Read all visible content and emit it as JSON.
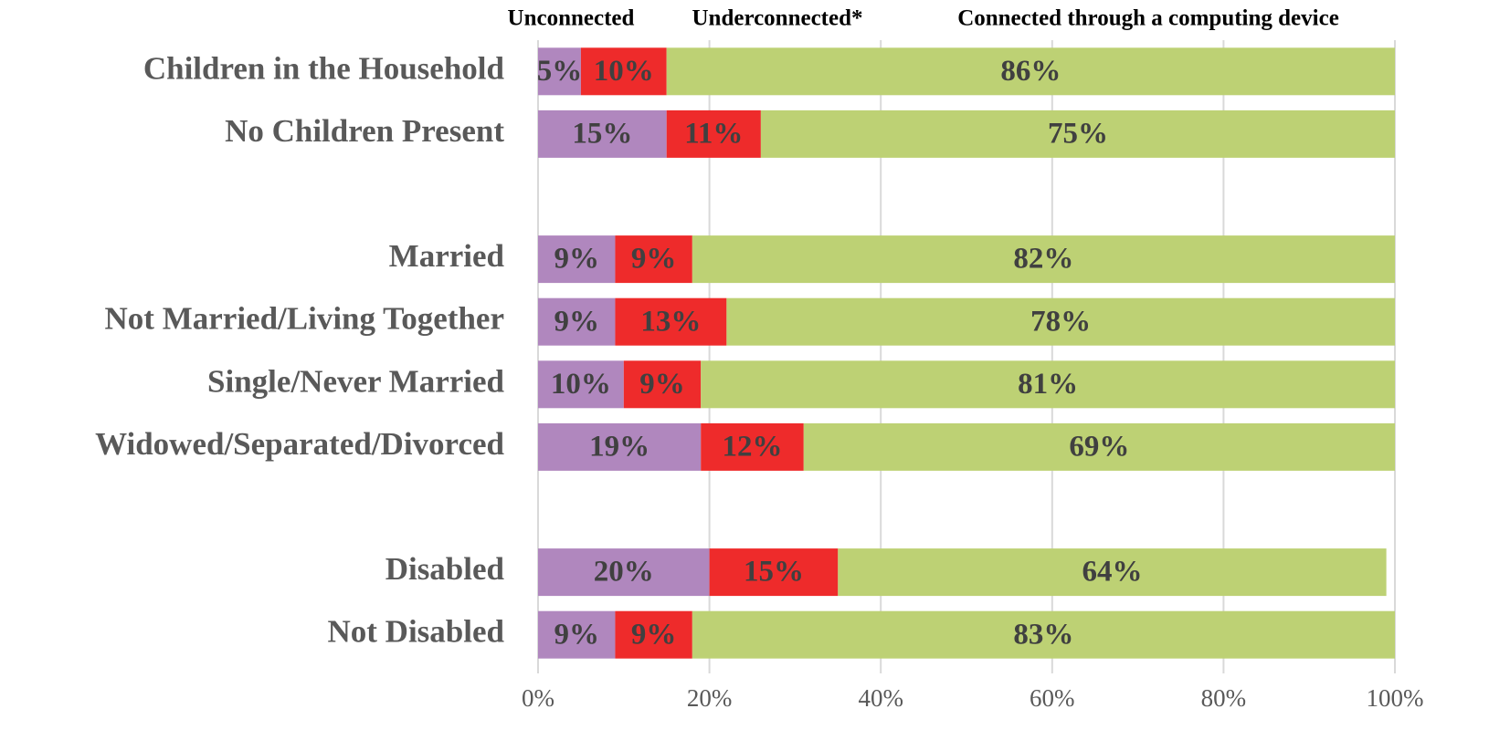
{
  "chart_data": {
    "type": "stacked-barh",
    "categories": [
      "Children in the Household",
      "No Children Present",
      null,
      "Married",
      "Not Married/Living Together",
      "Single/Never Married",
      "Widowed/Separated/Divorced",
      null,
      "Disabled",
      "Not Disabled"
    ],
    "series": [
      {
        "name": "Unconnected",
        "color": "#b087be",
        "values": [
          5,
          15,
          null,
          9,
          9,
          10,
          19,
          null,
          20,
          9
        ],
        "value_labels": [
          "5%",
          "15%",
          null,
          "9%",
          "9%",
          "10%",
          "19%",
          null,
          "20%",
          "9%"
        ]
      },
      {
        "name": "Underconnected*",
        "color": "#ee2b2b",
        "values": [
          10,
          11,
          null,
          9,
          13,
          9,
          12,
          null,
          15,
          9
        ],
        "value_labels": [
          "10%",
          "11%",
          null,
          "9%",
          "13%",
          "9%",
          "12%",
          null,
          "15%",
          "9%"
        ]
      },
      {
        "name": "Connected through a computing device",
        "color": "#bdd174",
        "values": [
          86,
          75,
          null,
          82,
          78,
          81,
          69,
          null,
          64,
          83
        ],
        "value_labels": [
          "86%",
          "75%",
          null,
          "82%",
          "78%",
          "81%",
          "69%",
          null,
          "64%",
          "83%"
        ]
      }
    ],
    "xlim": [
      0,
      100
    ],
    "xticks": [
      {
        "value": 0,
        "label": "0%"
      },
      {
        "value": 20,
        "label": "20%"
      },
      {
        "value": 40,
        "label": "40%"
      },
      {
        "value": 60,
        "label": "60%"
      },
      {
        "value": 80,
        "label": "80%"
      },
      {
        "value": 100,
        "label": "100%"
      }
    ],
    "grid": true,
    "legend": "top"
  }
}
